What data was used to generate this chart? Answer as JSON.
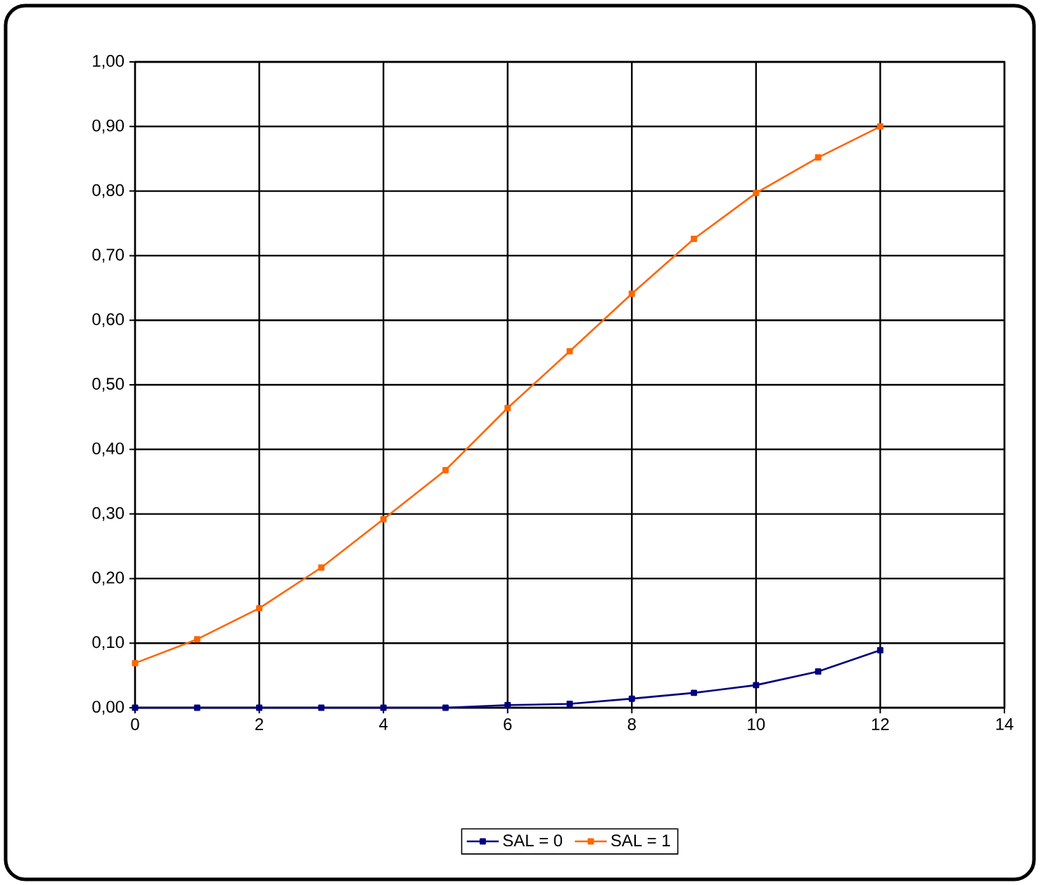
{
  "chart_data": {
    "type": "line",
    "x": [
      0,
      1,
      2,
      3,
      4,
      5,
      6,
      7,
      8,
      9,
      10,
      11,
      12
    ],
    "series": [
      {
        "name": "SAL = 0",
        "color": "#000080",
        "values": [
          0,
          0,
          0,
          0,
          0,
          0,
          0.004,
          0.006,
          0.014,
          0.023,
          0.035,
          0.056,
          0.089
        ]
      },
      {
        "name": "SAL = 1",
        "color": "#ff6600",
        "values": [
          0.069,
          0.106,
          0.154,
          0.217,
          0.292,
          0.368,
          0.464,
          0.552,
          0.641,
          0.726,
          0.797,
          0.852,
          0.9
        ]
      }
    ],
    "xlim": [
      0,
      14
    ],
    "xticks": [
      0,
      2,
      4,
      6,
      8,
      10,
      12,
      14
    ],
    "ylim": [
      0,
      1
    ],
    "yticks": [
      {
        "value": 0,
        "label": "0,00"
      },
      {
        "value": 0.1,
        "label": "0,10"
      },
      {
        "value": 0.2,
        "label": "0,20"
      },
      {
        "value": 0.3,
        "label": "0,30"
      },
      {
        "value": 0.4,
        "label": "0,40"
      },
      {
        "value": 0.5,
        "label": "0,50"
      },
      {
        "value": 0.6,
        "label": "0,60"
      },
      {
        "value": 0.7,
        "label": "0,70"
      },
      {
        "value": 0.8,
        "label": "0,80"
      },
      {
        "value": 0.9,
        "label": "0,90"
      },
      {
        "value": 1,
        "label": "1,00"
      }
    ],
    "grid": true,
    "legend": "bottom",
    "marker": "square",
    "line_style": "solid"
  }
}
